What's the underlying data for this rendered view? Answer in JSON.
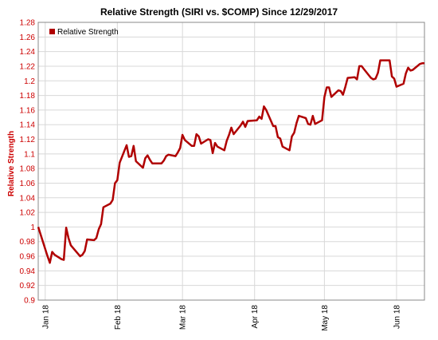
{
  "chart_data": {
    "type": "line",
    "title": "Relative Strength (SIRI vs. $COMP) Since 12/29/2017",
    "ylabel": "Relative Strength",
    "xlabel": "",
    "ylim": [
      0.9,
      1.28
    ],
    "y_ticks": [
      "0.9",
      "0.92",
      "0.94",
      "0.96",
      "0.98",
      "1",
      "1.02",
      "1.04",
      "1.06",
      "1.08",
      "1.1",
      "1.12",
      "1.14",
      "1.16",
      "1.18",
      "1.2",
      "1.22",
      "1.24",
      "1.26",
      "1.28"
    ],
    "x_tick_labels": [
      "Jan 18",
      "Feb 18",
      "Mar 18",
      "Apr 18",
      "May 18",
      "Jun 18"
    ],
    "legend_position": "top-left",
    "grid": true,
    "series": [
      {
        "name": "Relative Strength",
        "color": "#b00000",
        "x": [
          "2017-12-29",
          "2018-01-02",
          "2018-01-03",
          "2018-01-04",
          "2018-01-05",
          "2018-01-08",
          "2018-01-09",
          "2018-01-10",
          "2018-01-11",
          "2018-01-12",
          "2018-01-16",
          "2018-01-17",
          "2018-01-18",
          "2018-01-19",
          "2018-01-22",
          "2018-01-23",
          "2018-01-24",
          "2018-01-25",
          "2018-01-26",
          "2018-01-29",
          "2018-01-30",
          "2018-01-31",
          "2018-02-01",
          "2018-02-02",
          "2018-02-05",
          "2018-02-06",
          "2018-02-07",
          "2018-02-08",
          "2018-02-09",
          "2018-02-12",
          "2018-02-13",
          "2018-02-14",
          "2018-02-15",
          "2018-02-16",
          "2018-02-20",
          "2018-02-21",
          "2018-02-22",
          "2018-02-23",
          "2018-02-26",
          "2018-02-27",
          "2018-02-28",
          "2018-03-01",
          "2018-03-02",
          "2018-03-05",
          "2018-03-06",
          "2018-03-07",
          "2018-03-08",
          "2018-03-09",
          "2018-03-12",
          "2018-03-13",
          "2018-03-14",
          "2018-03-15",
          "2018-03-16",
          "2018-03-19",
          "2018-03-20",
          "2018-03-21",
          "2018-03-22",
          "2018-03-23",
          "2018-03-26",
          "2018-03-27",
          "2018-03-28",
          "2018-03-29",
          "2018-04-02",
          "2018-04-03",
          "2018-04-04",
          "2018-04-05",
          "2018-04-06",
          "2018-04-09",
          "2018-04-10",
          "2018-04-11",
          "2018-04-12",
          "2018-04-13",
          "2018-04-16",
          "2018-04-17",
          "2018-04-18",
          "2018-04-19",
          "2018-04-20",
          "2018-04-23",
          "2018-04-24",
          "2018-04-25",
          "2018-04-26",
          "2018-04-27",
          "2018-04-30",
          "2018-05-01",
          "2018-05-02",
          "2018-05-03",
          "2018-05-04",
          "2018-05-07",
          "2018-05-08",
          "2018-05-09",
          "2018-05-10",
          "2018-05-11",
          "2018-05-14",
          "2018-05-15",
          "2018-05-16",
          "2018-05-17",
          "2018-05-18",
          "2018-05-21",
          "2018-05-22",
          "2018-05-23",
          "2018-05-24",
          "2018-05-25",
          "2018-05-29",
          "2018-05-30",
          "2018-05-31",
          "2018-06-01",
          "2018-06-04",
          "2018-06-05",
          "2018-06-06",
          "2018-06-07",
          "2018-06-08",
          "2018-06-11",
          "2018-06-12",
          "2018-06-13"
        ],
        "values": [
          1.0,
          0.96,
          0.951,
          0.966,
          0.962,
          0.956,
          0.955,
          0.999,
          0.985,
          0.975,
          0.96,
          0.962,
          0.967,
          0.983,
          0.982,
          0.985,
          0.997,
          1.004,
          1.027,
          1.032,
          1.037,
          1.06,
          1.064,
          1.088,
          1.112,
          1.096,
          1.097,
          1.111,
          1.09,
          1.081,
          1.094,
          1.098,
          1.092,
          1.087,
          1.087,
          1.091,
          1.097,
          1.099,
          1.097,
          1.102,
          1.108,
          1.126,
          1.119,
          1.111,
          1.111,
          1.127,
          1.124,
          1.114,
          1.12,
          1.119,
          1.101,
          1.115,
          1.11,
          1.105,
          1.118,
          1.126,
          1.136,
          1.127,
          1.139,
          1.144,
          1.137,
          1.145,
          1.146,
          1.151,
          1.148,
          1.165,
          1.16,
          1.138,
          1.138,
          1.123,
          1.121,
          1.11,
          1.105,
          1.124,
          1.129,
          1.142,
          1.152,
          1.149,
          1.141,
          1.14,
          1.152,
          1.141,
          1.146,
          1.178,
          1.191,
          1.191,
          1.178,
          1.187,
          1.186,
          1.181,
          1.192,
          1.204,
          1.205,
          1.202,
          1.22,
          1.22,
          1.216,
          1.204,
          1.202,
          1.203,
          1.211,
          1.228,
          1.228,
          1.206,
          1.203,
          1.192,
          1.196,
          1.21,
          1.218,
          1.214,
          1.215,
          1.223,
          1.224,
          1.224
        ]
      }
    ]
  }
}
